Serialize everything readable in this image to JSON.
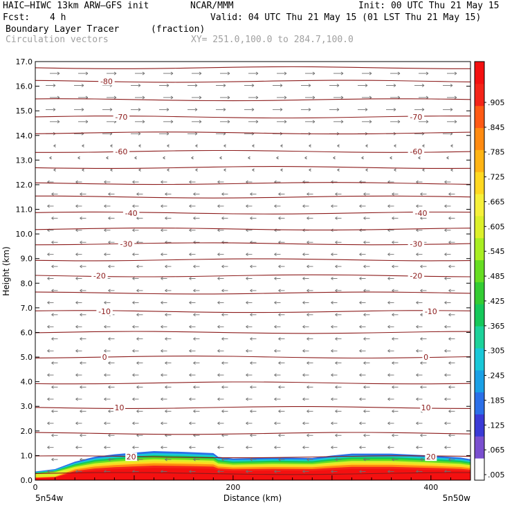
{
  "header": {
    "model_title": "HAIC—HIWC 13km ARW—GFS init",
    "org": "NCAR/MMM",
    "init_line": "Init: 00 UTC Thu 21 May 15",
    "fcst_label": "Fcst:",
    "fcst_value": "4 h",
    "valid_line": "Valid: 04 UTC Thu 21 May 15 (01 LST Thu 21 May 15)",
    "field_name": "Boundary Layer Tracer",
    "field_units": "(fraction)",
    "vector_name": "Circulation vectors",
    "xsec_line": "XY= 251.0,100.0 to 284.7,100.0"
  },
  "axes": {
    "ylabel": "Height (km)",
    "xlabel": "Distance (km)",
    "left_end": "5n54w",
    "right_end": "5n50w"
  },
  "colors": {
    "contour": "#8b1a1a",
    "vector": "#707070",
    "colorbar": [
      "#ffffff",
      "#7a4fcf",
      "#3a3ad6",
      "#2b6fe8",
      "#1aa0e6",
      "#19c8d8",
      "#1cd29a",
      "#15c85a",
      "#33cc33",
      "#66dd22",
      "#a8ee22",
      "#dcf02a",
      "#f6f03a",
      "#ffd820",
      "#ffb414",
      "#ff8a10",
      "#ff5a14",
      "#f42418",
      "#f41010"
    ]
  },
  "chart_data": {
    "type": "heatmap",
    "x_range_km": [
      0,
      440
    ],
    "y_range_km": [
      0,
      17
    ],
    "x_ticks": [
      {
        "value": 0,
        "label": "0"
      },
      {
        "value": 200,
        "label": "200"
      },
      {
        "value": 400,
        "label": "400"
      }
    ],
    "y_ticks": [
      {
        "value": 0,
        "label": "0.0"
      },
      {
        "value": 1,
        "label": "1.0"
      },
      {
        "value": 2,
        "label": "2.0"
      },
      {
        "value": 3,
        "label": "3.0"
      },
      {
        "value": 4,
        "label": "4.0"
      },
      {
        "value": 5,
        "label": "5.0"
      },
      {
        "value": 6,
        "label": "6.0"
      },
      {
        "value": 7,
        "label": "7.0"
      },
      {
        "value": 8,
        "label": "8.0"
      },
      {
        "value": 9,
        "label": "9.0"
      },
      {
        "value": 10,
        "label": "10.0"
      },
      {
        "value": 11,
        "label": "11.0"
      },
      {
        "value": 12,
        "label": "12.0"
      },
      {
        "value": 13,
        "label": "13.0"
      },
      {
        "value": 14,
        "label": "14.0"
      },
      {
        "value": 15,
        "label": "15.0"
      },
      {
        "value": 16,
        "label": "16.0"
      },
      {
        "value": 17,
        "label": "17.0"
      }
    ],
    "colorbar_levels": [
      ".005",
      ".065",
      ".125",
      ".185",
      ".245",
      ".305",
      ".365",
      ".425",
      ".485",
      ".545",
      ".605",
      ".665",
      ".725",
      ".785",
      ".845",
      ".905"
    ],
    "temperature_contour_heights_km": [
      0.27,
      0.95,
      1.9,
      2.95,
      3.95,
      5.0,
      6.0,
      6.85,
      7.6,
      8.3,
      8.95,
      9.6,
      10.2,
      10.85,
      11.5,
      12.05,
      12.7,
      13.35,
      14.1,
      14.75,
      15.45,
      16.2,
      16.75
    ],
    "temperature_labels": [
      {
        "label": "20",
        "x": 97,
        "y": 0.95
      },
      {
        "label": "20",
        "x": 400,
        "y": 0.95
      },
      {
        "label": "10",
        "x": 85,
        "y": 2.95
      },
      {
        "label": "10",
        "x": 395,
        "y": 2.95
      },
      {
        "label": "0",
        "x": 70,
        "y": 5.0
      },
      {
        "label": "0",
        "x": 395,
        "y": 5.0
      },
      {
        "label": "-10",
        "x": 70,
        "y": 6.85
      },
      {
        "label": "-10",
        "x": 400,
        "y": 6.85
      },
      {
        "label": "-20",
        "x": 65,
        "y": 8.3
      },
      {
        "label": "-20",
        "x": 385,
        "y": 8.3
      },
      {
        "label": "-30",
        "x": 92,
        "y": 9.6
      },
      {
        "label": "-30",
        "x": 385,
        "y": 9.6
      },
      {
        "label": "-40",
        "x": 97,
        "y": 10.85
      },
      {
        "label": "-40",
        "x": 390,
        "y": 10.85
      },
      {
        "label": "-60",
        "x": 87,
        "y": 13.35
      },
      {
        "label": "-60",
        "x": 385,
        "y": 13.35
      },
      {
        "label": "-70",
        "x": 87,
        "y": 14.75
      },
      {
        "label": "-70",
        "x": 385,
        "y": 14.75
      },
      {
        "label": "-80",
        "x": 72,
        "y": 16.2
      }
    ],
    "tracer_top_km": [
      [
        0,
        0.35
      ],
      [
        20,
        0.45
      ],
      [
        40,
        0.75
      ],
      [
        60,
        0.95
      ],
      [
        80,
        1.05
      ],
      [
        100,
        1.12
      ],
      [
        120,
        1.18
      ],
      [
        150,
        1.15
      ],
      [
        180,
        1.1
      ],
      [
        185,
        0.95
      ],
      [
        200,
        0.88
      ],
      [
        240,
        0.92
      ],
      [
        280,
        0.9
      ],
      [
        300,
        1.0
      ],
      [
        320,
        1.08
      ],
      [
        360,
        1.08
      ],
      [
        400,
        1.0
      ],
      [
        430,
        0.92
      ],
      [
        440,
        0.85
      ]
    ]
  }
}
